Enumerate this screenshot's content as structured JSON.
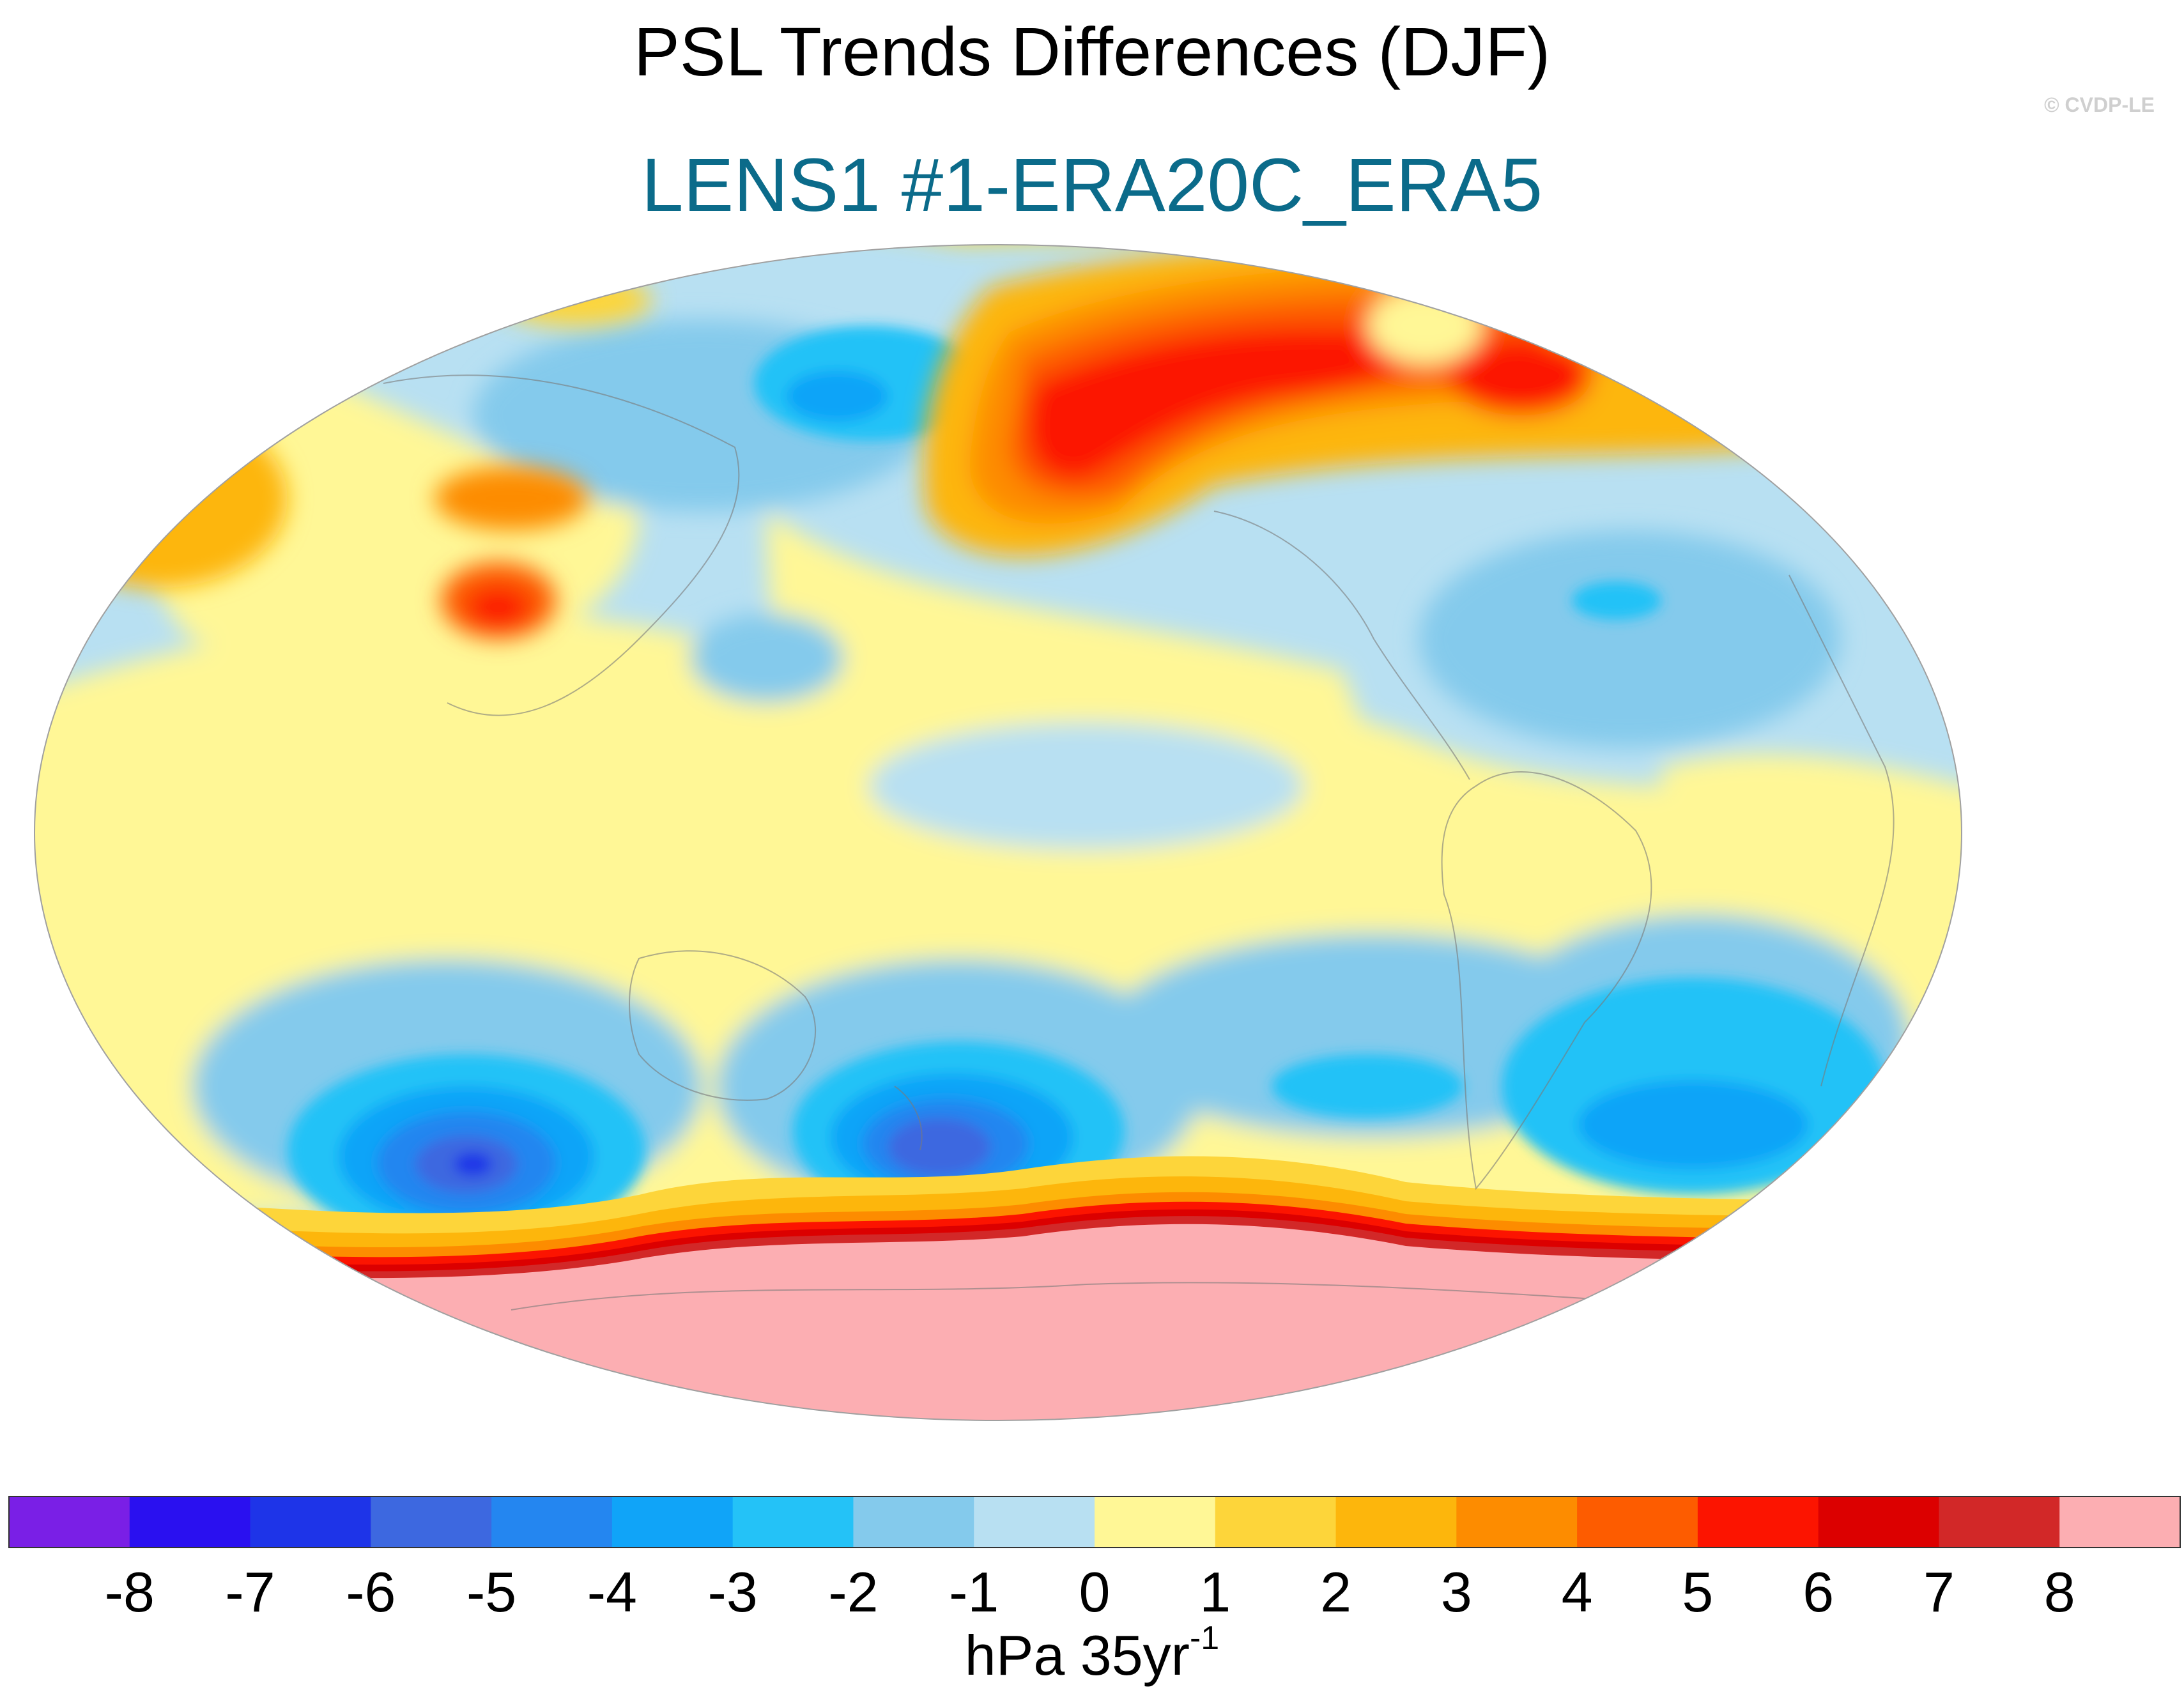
{
  "figure": {
    "title": "PSL Trends Differences (DJF)",
    "subtitle": "LENS1 #1-ERA20C_ERA5",
    "copyright": "© CVDP-LE",
    "units_base": "hPa 35yr",
    "units_exponent": "-1"
  },
  "colorbar": {
    "tick_labels": [
      "-8",
      "-7",
      "-6",
      "-5",
      "-4",
      "-3",
      "-2",
      "-1",
      "0",
      "1",
      "2",
      "3",
      "4",
      "5",
      "6",
      "7",
      "8"
    ],
    "colors": [
      "#7a1fe6",
      "#2a10f0",
      "#1e34e8",
      "#3d68e0",
      "#2486f0",
      "#10a4f8",
      "#24c2f7",
      "#84caec",
      "#b8e0f2",
      "#fff796",
      "#fdd53a",
      "#fdb60c",
      "#fd8c00",
      "#fd5c00",
      "#fc1400",
      "#dc0000",
      "#d22828",
      "#fcaeb2"
    ]
  },
  "map_fields": {
    "background_color": "#b8e0f2",
    "antarctic_color": "#fcaeb2"
  }
}
